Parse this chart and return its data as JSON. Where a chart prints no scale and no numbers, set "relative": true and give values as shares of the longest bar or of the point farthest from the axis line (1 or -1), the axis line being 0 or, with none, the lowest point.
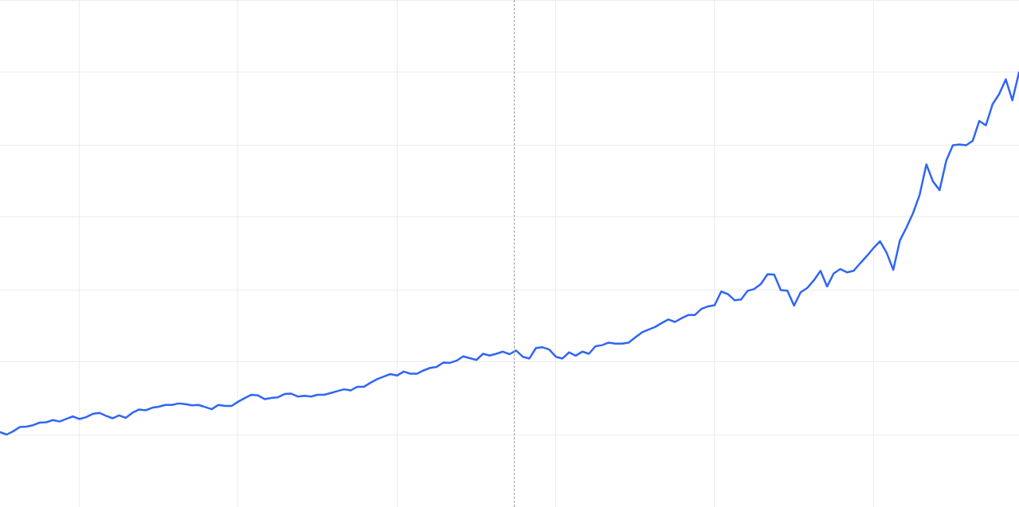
{
  "chart_data": {
    "type": "line",
    "relative": true,
    "grid": true,
    "legend": false,
    "marker": "none",
    "line_style": "solid",
    "categories": [
      null,
      null,
      null,
      null,
      null,
      null,
      null,
      null,
      null,
      null,
      null,
      null,
      null,
      null,
      null,
      null,
      null,
      null,
      null,
      null,
      null,
      null,
      null,
      null,
      null,
      null,
      null,
      null,
      null,
      null,
      null,
      null,
      null,
      null,
      null,
      null,
      null,
      null,
      null,
      null,
      null,
      null,
      null,
      null,
      null,
      null,
      null,
      null,
      null,
      null,
      null,
      null,
      null,
      null,
      null,
      null,
      null,
      null,
      null,
      null,
      null,
      null,
      null,
      null,
      null,
      null,
      null,
      null,
      null,
      null,
      null,
      null,
      null,
      null,
      null,
      null,
      null,
      null,
      null,
      null,
      null,
      null,
      null,
      null,
      null,
      null,
      null,
      null,
      null,
      null,
      null,
      null,
      null,
      null,
      null,
      null,
      null,
      null,
      null,
      null,
      null,
      null,
      null,
      null,
      null,
      null,
      null,
      null,
      null,
      null,
      null,
      null,
      null,
      null,
      null,
      null,
      null,
      null,
      null,
      null,
      null,
      null,
      null,
      null,
      null,
      null,
      null,
      null,
      null,
      null,
      null,
      null,
      null,
      null,
      null,
      null,
      null,
      null,
      null,
      null,
      null,
      null,
      null,
      null,
      null,
      null,
      null,
      null,
      null,
      null,
      null,
      null,
      null,
      null,
      null
    ],
    "series": [
      {
        "color": "#2f66f5",
        "values": [
          0.007,
          0,
          0.009,
          0.021,
          0.022,
          0.026,
          0.033,
          0.034,
          0.04,
          0.036,
          0.043,
          0.05,
          0.043,
          0.048,
          0.057,
          0.06,
          0.052,
          0.045,
          0.053,
          0.046,
          0.06,
          0.069,
          0.067,
          0.074,
          0.077,
          0.082,
          0.082,
          0.086,
          0.084,
          0.081,
          0.082,
          0.076,
          0.07,
          0.082,
          0.079,
          0.079,
          0.091,
          0.101,
          0.11,
          0.108,
          0.098,
          0.101,
          0.103,
          0.112,
          0.113,
          0.105,
          0.107,
          0.105,
          0.11,
          0.11,
          0.115,
          0.12,
          0.125,
          0.122,
          0.132,
          0.132,
          0.143,
          0.153,
          0.16,
          0.167,
          0.163,
          0.174,
          0.168,
          0.168,
          0.177,
          0.184,
          0.187,
          0.199,
          0.198,
          0.204,
          0.216,
          0.211,
          0.206,
          0.223,
          0.218,
          0.223,
          0.229,
          0.222,
          0.232,
          0.215,
          0.21,
          0.239,
          0.241,
          0.235,
          0.215,
          0.21,
          0.227,
          0.218,
          0.229,
          0.223,
          0.244,
          0.247,
          0.254,
          0.251,
          0.251,
          0.254,
          0.268,
          0.282,
          0.29,
          0.297,
          0.308,
          0.318,
          0.311,
          0.321,
          0.33,
          0.33,
          0.347,
          0.354,
          0.357,
          0.395,
          0.388,
          0.371,
          0.373,
          0.397,
          0.402,
          0.416,
          0.443,
          0.442,
          0.399,
          0.397,
          0.356,
          0.393,
          0.405,
          0.426,
          0.452,
          0.409,
          0.445,
          0.457,
          0.448,
          0.452,
          0.473,
          0.493,
          0.515,
          0.534,
          0.502,
          0.455,
          0.536,
          0.572,
          0.612,
          0.663,
          0.746,
          0.699,
          0.675,
          0.756,
          0.799,
          0.801,
          0.799,
          0.811,
          0.866,
          0.854,
          0.912,
          0.94,
          0.981,
          0.923,
          1
        ]
      }
    ]
  }
}
